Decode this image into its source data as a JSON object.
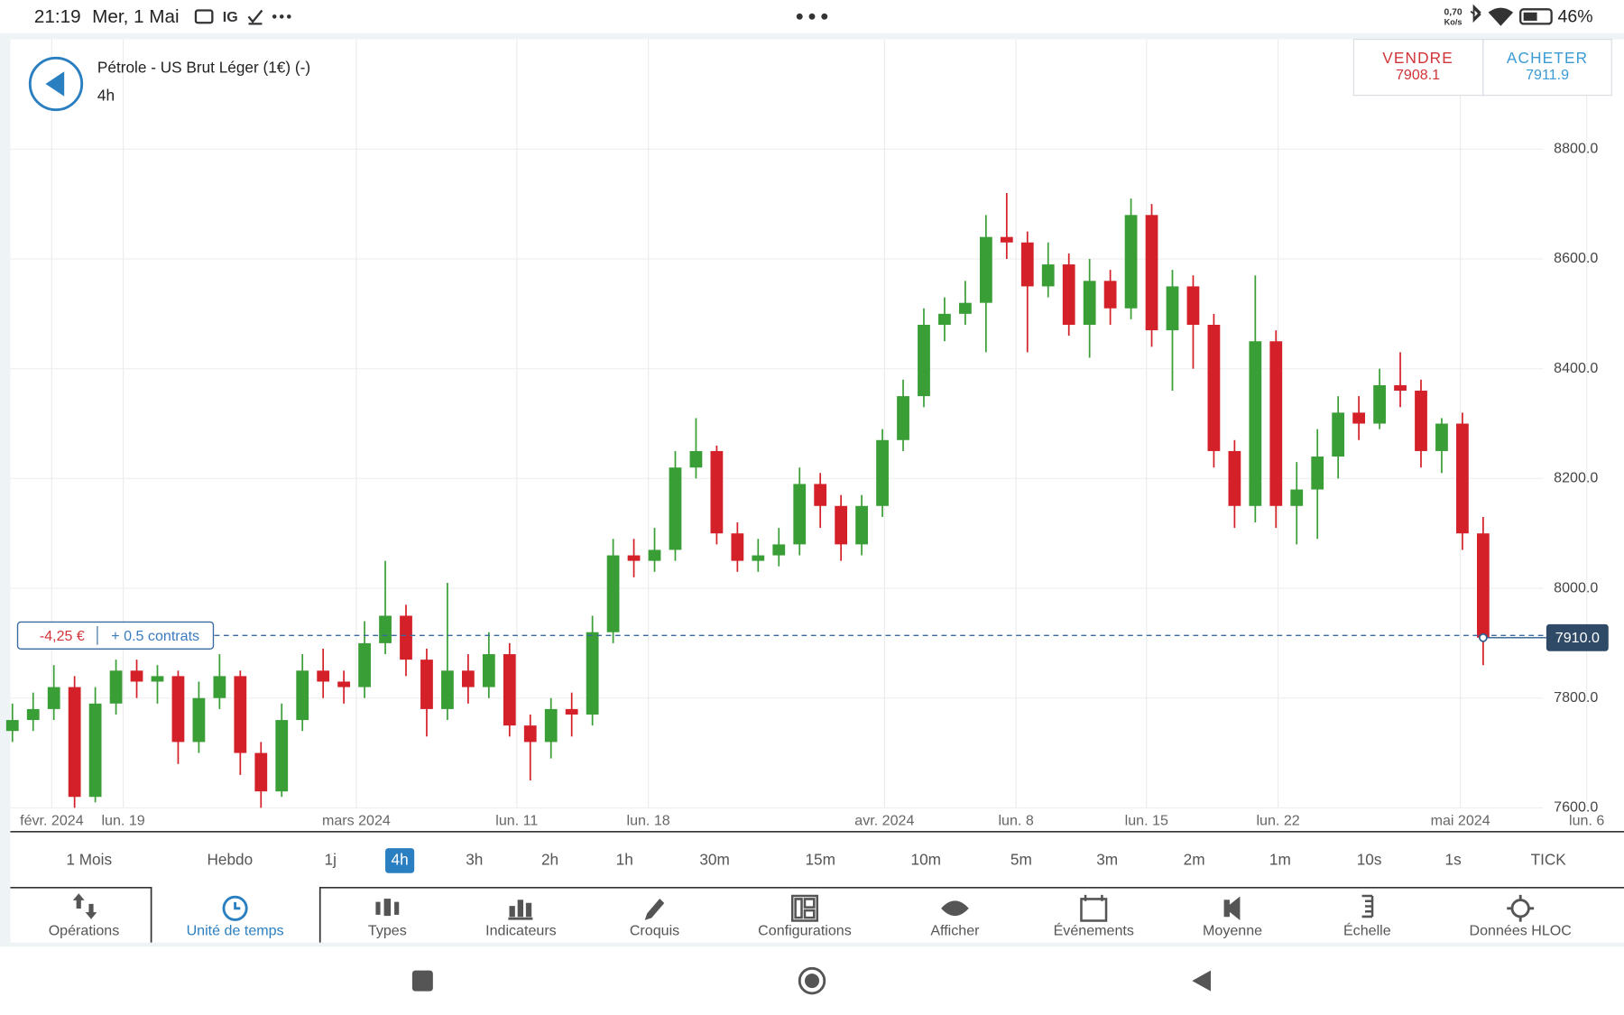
{
  "status_bar": {
    "time": "21:19",
    "date": "Mer, 1 Mai",
    "app": "IG",
    "speed": "0,70",
    "speed_unit": "Ko/s",
    "battery": "46%"
  },
  "header": {
    "title": "Pétrole - US Brut Léger (1€) (-)",
    "interval": "4h"
  },
  "quote": {
    "sell_label": "VENDRE",
    "sell_price": "7908.1",
    "buy_label": "ACHETER",
    "buy_price": "7911.9"
  },
  "position": {
    "pnl": "-4,25 €",
    "size": "+ 0.5 contrats",
    "level": 7914
  },
  "chart_data": {
    "type": "candlestick",
    "open": [
      7740,
      7760,
      7780,
      7820,
      7620,
      7790,
      7850,
      7830,
      7840,
      7720,
      7800,
      7840,
      7700,
      7630,
      7760,
      7850,
      7830,
      7820,
      7900,
      7950,
      7870,
      7780,
      7850,
      7820,
      7880,
      7750,
      7720,
      7780,
      7770,
      7920,
      8060,
      8050,
      8070,
      8220,
      8250,
      8100,
      8050,
      8060,
      8080,
      8190,
      8150,
      8080,
      8150,
      8270,
      8350,
      8480,
      8500,
      8520,
      8640,
      8630,
      8550,
      8590,
      8480,
      8560,
      8510,
      8680,
      8470,
      8550,
      8480,
      8250,
      8150,
      8450,
      8150,
      8180,
      8240,
      8320,
      8300,
      8370,
      8360,
      8250,
      8300,
      8100
    ],
    "high": [
      7790,
      7810,
      7860,
      7840,
      7820,
      7870,
      7870,
      7860,
      7850,
      7830,
      7880,
      7850,
      7720,
      7790,
      7880,
      7890,
      7850,
      7940,
      8050,
      7970,
      7890,
      8010,
      7880,
      7920,
      7900,
      7770,
      7800,
      7810,
      7950,
      8090,
      8090,
      8110,
      8250,
      8310,
      8260,
      8120,
      8090,
      8110,
      8220,
      8210,
      8170,
      8170,
      8290,
      8380,
      8510,
      8530,
      8560,
      8680,
      8720,
      8650,
      8630,
      8610,
      8600,
      8580,
      8710,
      8700,
      8580,
      8570,
      8500,
      8270,
      8570,
      8470,
      8230,
      8290,
      8350,
      8350,
      8400,
      8430,
      8380,
      8310,
      8320,
      8130
    ],
    "low": [
      7720,
      7740,
      7760,
      7600,
      7610,
      7770,
      7800,
      7790,
      7680,
      7700,
      7780,
      7660,
      7600,
      7620,
      7740,
      7800,
      7790,
      7800,
      7880,
      7840,
      7730,
      7760,
      7790,
      7800,
      7730,
      7650,
      7690,
      7730,
      7750,
      7900,
      8020,
      8030,
      8050,
      8200,
      8080,
      8030,
      8030,
      8040,
      8060,
      8110,
      8050,
      8060,
      8130,
      8250,
      8330,
      8450,
      8480,
      8430,
      8600,
      8430,
      8530,
      8460,
      8420,
      8480,
      8490,
      8440,
      8360,
      8400,
      8220,
      8110,
      8120,
      8110,
      8080,
      8090,
      8200,
      8270,
      8290,
      8330,
      8220,
      8210,
      8070,
      7860
    ],
    "close": [
      7760,
      7780,
      7820,
      7620,
      7790,
      7850,
      7830,
      7840,
      7720,
      7800,
      7840,
      7700,
      7630,
      7760,
      7850,
      7830,
      7820,
      7900,
      7950,
      7870,
      7780,
      7850,
      7820,
      7880,
      7750,
      7720,
      7780,
      7770,
      7920,
      8060,
      8050,
      8070,
      8220,
      8250,
      8100,
      8050,
      8060,
      8080,
      8190,
      8150,
      8080,
      8150,
      8270,
      8350,
      8480,
      8500,
      8520,
      8640,
      8630,
      8550,
      8590,
      8480,
      8560,
      8510,
      8680,
      8470,
      8550,
      8480,
      8250,
      8150,
      8450,
      8150,
      8180,
      8240,
      8320,
      8300,
      8370,
      8360,
      8250,
      8300,
      8100,
      7910
    ],
    "up_color": "#3a9e37",
    "down_color": "#d42129",
    "last_price": {
      "value": 7910,
      "label": "7910.0"
    },
    "ylim": [
      7600,
      9000
    ],
    "yticks": [
      {
        "value": 7600,
        "label": "7600.0"
      },
      {
        "value": 7800,
        "label": "7800.0"
      },
      {
        "value": 8000,
        "label": "8000.0"
      },
      {
        "value": 8200,
        "label": "8200.0"
      },
      {
        "value": 8400,
        "label": "8400.0"
      },
      {
        "value": 8600,
        "label": "8600.0"
      },
      {
        "value": 8800,
        "label": "8800.0"
      }
    ],
    "xlim": [
      -0.1,
      77.4
    ],
    "xticks": [
      {
        "value": 1.9,
        "label": "févr. 2024"
      },
      {
        "value": 5.35,
        "label": "lun. 19"
      },
      {
        "value": 16.6,
        "label": "mars 2024"
      },
      {
        "value": 24.35,
        "label": "lun. 11"
      },
      {
        "value": 30.7,
        "label": "lun. 18"
      },
      {
        "value": 42.1,
        "label": "avr. 2024"
      },
      {
        "value": 48.45,
        "label": "lun. 8"
      },
      {
        "value": 54.75,
        "label": "lun. 15"
      },
      {
        "value": 61.1,
        "label": "lun. 22"
      },
      {
        "value": 69.9,
        "label": "mai 2024"
      },
      {
        "value": 76,
        "label": "lun. 6"
      }
    ],
    "grid": true
  },
  "timeframes": {
    "items": [
      "1 Mois",
      "Hebdo",
      "1j",
      "4h",
      "3h",
      "2h",
      "1h",
      "30m",
      "15m",
      "10m",
      "5m",
      "3m",
      "2m",
      "1m",
      "10s",
      "1s",
      "TICK"
    ],
    "selected": "4h"
  },
  "toolbar": {
    "items": [
      "Opérations",
      "Unité de temps",
      "Types",
      "Indicateurs",
      "Croquis",
      "Configurations",
      "Afficher",
      "Événements",
      "Moyenne",
      "Échelle",
      "Données HLOC"
    ],
    "selected": "Unité de temps"
  }
}
